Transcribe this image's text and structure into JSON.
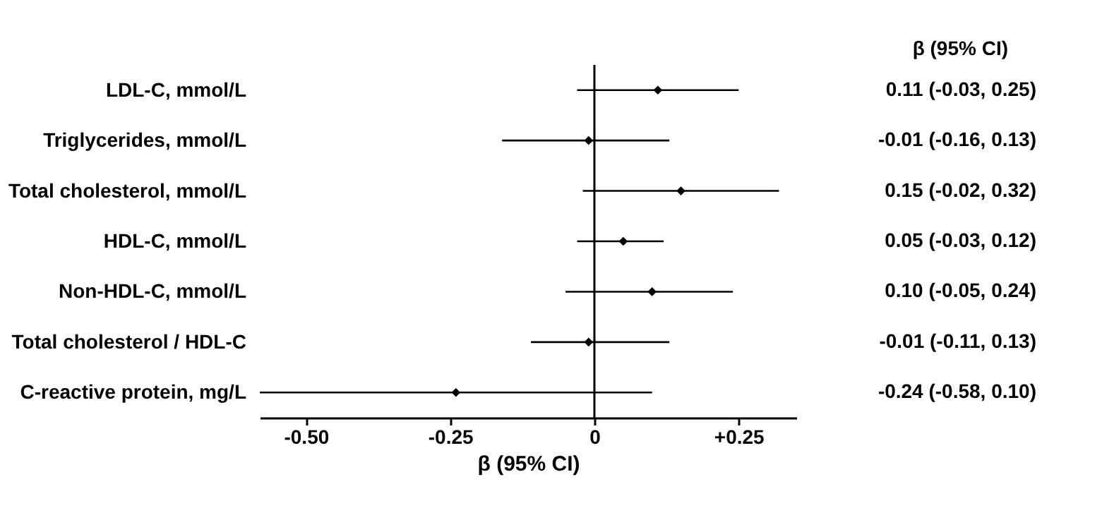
{
  "chart_data": {
    "type": "scatter",
    "orientation": "horizontal",
    "categories": [
      "LDL-C, mmol/L",
      "Triglycerides, mmol/L",
      "Total cholesterol, mmol/L",
      "HDL-C, mmol/L",
      "Non-HDL-C, mmol/L",
      "Total cholesterol / HDL-C",
      "C-reactive protein, mg/L"
    ],
    "values": [
      0.11,
      -0.01,
      0.15,
      0.05,
      0.1,
      -0.01,
      -0.24
    ],
    "errors": [
      [
        -0.03,
        0.25
      ],
      [
        -0.16,
        0.13
      ],
      [
        -0.02,
        0.32
      ],
      [
        -0.03,
        0.12
      ],
      [
        -0.05,
        0.24
      ],
      [
        -0.11,
        0.13
      ],
      [
        -0.58,
        0.1
      ]
    ],
    "value_labels": [
      "0.11 (-0.03, 0.25)",
      "-0.01 (-0.16, 0.13)",
      "0.15 (-0.02, 0.32)",
      "0.05 (-0.03, 0.12)",
      "0.10 (-0.05, 0.24)",
      "-0.01 (-0.11, 0.13)",
      "-0.24 (-0.58, 0.10)"
    ],
    "color": "#000000",
    "marker": "diamond",
    "grid": false,
    "legend": false,
    "xlabel": "β (95% CI)",
    "annotations": [
      "β (95% CI)"
    ],
    "xlim": [
      -0.58,
      0.35
    ],
    "xticks": [
      {
        "value": -0.5,
        "label": "-0.50"
      },
      {
        "value": -0.25,
        "label": "-0.25"
      },
      0,
      {
        "value": 0.25,
        "label": "+0.25"
      }
    ],
    "ref_lines": [
      {
        "axis": "x",
        "value": 0,
        "label": null
      }
    ]
  }
}
